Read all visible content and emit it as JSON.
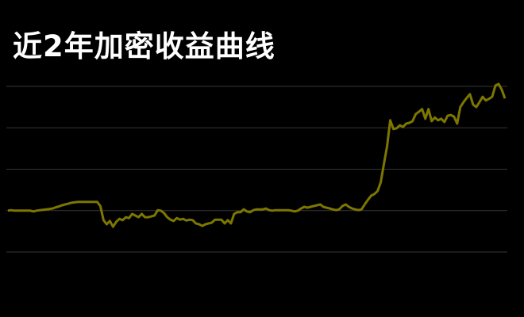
{
  "chart_data": {
    "type": "line",
    "title": "近2年加密收益曲线",
    "xlabel": "",
    "ylabel": "",
    "ylim": [
      0,
      40
    ],
    "grid": true,
    "gridlines": [
      0,
      10,
      20,
      30,
      40
    ],
    "colors": {
      "background": "#000000",
      "line": "#7d7700",
      "grid": "#3a3434",
      "title": "#ffffff"
    },
    "series": [
      {
        "values": [
          10.0,
          10.1,
          10.0,
          10.0,
          10.0,
          10.0,
          10.0,
          10.0,
          9.8,
          10.0,
          10.1,
          10.2,
          10.3,
          10.4,
          10.5,
          10.8,
          11.0,
          11.3,
          11.5,
          11.7,
          11.9,
          12.0,
          12.1,
          12.1,
          12.1,
          12.1,
          12.1,
          12.1,
          12.1,
          11.1,
          7.7,
          6.7,
          7.5,
          6.1,
          7.3,
          8.0,
          7.7,
          8.4,
          8.2,
          9.2,
          8.8,
          8.4,
          9.2,
          8.4,
          8.4,
          8.6,
          8.8,
          10.1,
          10.0,
          9.4,
          8.4,
          7.8,
          7.5,
          8.2,
          7.8,
          8.0,
          7.6,
          7.8,
          7.7,
          6.9,
          6.7,
          6.3,
          6.7,
          6.9,
          7.1,
          7.8,
          7.8,
          7.8,
          6.9,
          7.7,
          6.9,
          9.2,
          9.6,
          9.6,
          10.3,
          9.8,
          9.6,
          10.1,
          10.3,
          10.3,
          10.3,
          10.5,
          10.1,
          10.0,
          10.1,
          10.1,
          10.1,
          10.1,
          10.1,
          10.0,
          9.8,
          10.0,
          10.5,
          10.9,
          10.7,
          10.9,
          11.1,
          11.3,
          11.5,
          10.9,
          10.7,
          10.5,
          10.3,
          10.1,
          10.3,
          11.1,
          11.5,
          10.9,
          10.5,
          10.3,
          10.1,
          10.3,
          11.5,
          12.6,
          13.6,
          14.0,
          14.7,
          16.8,
          21.2,
          25.5,
          31.8,
          29.7,
          29.9,
          30.6,
          30.2,
          31.0,
          31.2,
          31.6,
          33.3,
          33.9,
          34.5,
          32.2,
          34.5,
          31.6,
          32.5,
          31.8,
          32.2,
          31.4,
          32.9,
          33.1,
          32.7,
          31.0,
          35.0,
          36.2,
          37.2,
          38.1,
          35.6,
          35.0,
          36.2,
          37.5,
          36.6,
          37.0,
          37.5,
          40.2,
          40.6,
          39.2,
          37.1
        ]
      }
    ]
  }
}
